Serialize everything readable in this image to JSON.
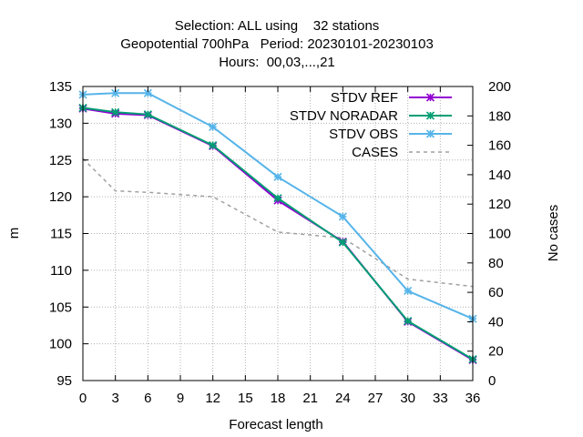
{
  "chart_data": {
    "type": "line",
    "title": [
      "Selection: ALL using    32 stations",
      "Geopotential 700hPa   Period: 20230101-20230103",
      "Hours:  00,03,...,21"
    ],
    "xlabel": "Forecast length",
    "ylabel": "m",
    "y2label": "No cases",
    "xlim": [
      0,
      36
    ],
    "ylim": [
      95,
      135
    ],
    "y2lim": [
      0,
      200
    ],
    "xticks": [
      0,
      3,
      6,
      9,
      12,
      15,
      18,
      21,
      24,
      27,
      30,
      33,
      36
    ],
    "yticks": [
      95,
      100,
      105,
      110,
      115,
      120,
      125,
      130,
      135
    ],
    "y2ticks": [
      0,
      20,
      40,
      60,
      80,
      100,
      120,
      140,
      160,
      180,
      200
    ],
    "grid": true,
    "legend_position": "top-right",
    "series": [
      {
        "name": "STDV REF",
        "axis": "y1",
        "color": "#9400d3",
        "style": "solid",
        "marker": "x-star",
        "x": [
          0,
          3,
          6,
          12,
          18,
          24,
          30,
          36
        ],
        "values": [
          132.0,
          131.3,
          131.1,
          126.9,
          119.5,
          113.9,
          103.0,
          97.8
        ]
      },
      {
        "name": "STDV NORADAR",
        "axis": "y1",
        "color": "#009e73",
        "style": "solid",
        "marker": "x-star",
        "x": [
          0,
          3,
          6,
          12,
          18,
          24,
          30,
          36
        ],
        "values": [
          132.1,
          131.5,
          131.2,
          127.0,
          119.8,
          113.8,
          103.1,
          97.9
        ]
      },
      {
        "name": "STDV OBS",
        "axis": "y1",
        "color": "#56b4e9",
        "style": "solid",
        "marker": "x-star",
        "x": [
          0,
          3,
          6,
          12,
          18,
          24,
          30,
          36
        ],
        "values": [
          133.9,
          134.1,
          134.1,
          129.5,
          122.7,
          117.3,
          107.2,
          103.4
        ]
      },
      {
        "name": "CASES",
        "axis": "y2",
        "color": "#a0a0a0",
        "style": "dashed",
        "marker": "none",
        "x": [
          0,
          3,
          6,
          12,
          18,
          24,
          30,
          36
        ],
        "values": [
          151,
          129,
          128,
          125,
          101,
          97,
          69,
          64
        ]
      }
    ]
  }
}
